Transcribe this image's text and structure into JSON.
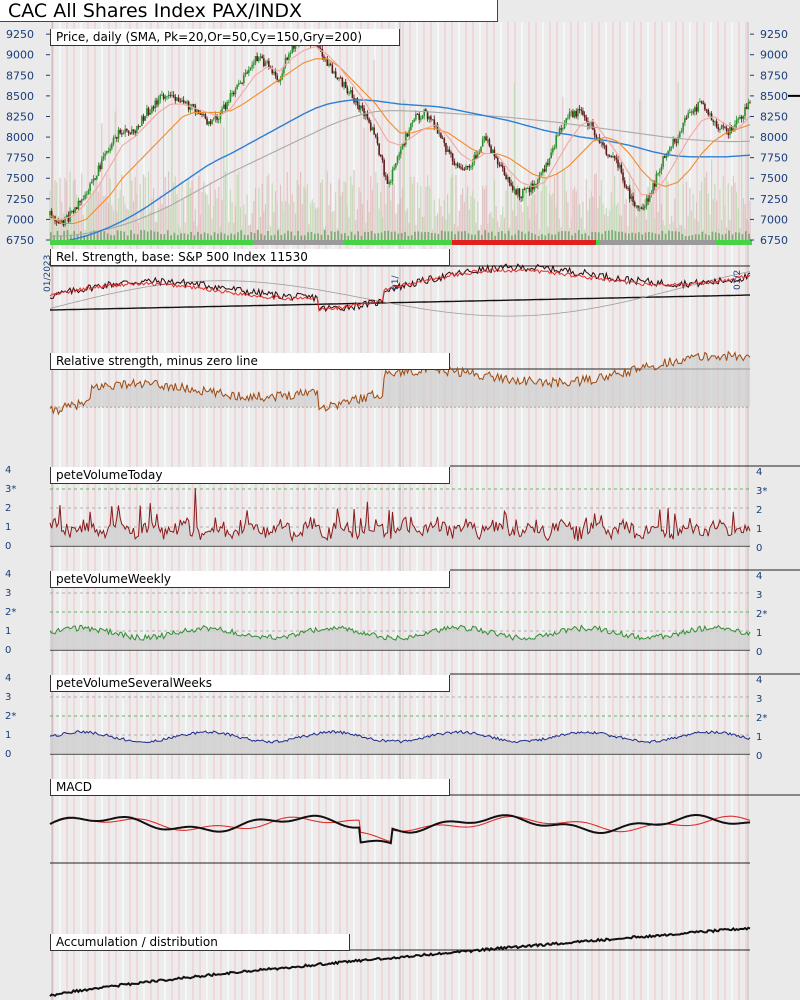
{
  "page": {
    "title": "CAC All Shares Index PAX/INDX"
  },
  "chart_data": [
    {
      "type": "candlestick",
      "panel": "price",
      "label": "Price, daily (SMA, Pk=20,Or=50,Cy=150,Gry=200)",
      "y_ticks": [
        9250,
        9000,
        8750,
        8500,
        8250,
        8000,
        7750,
        7500,
        7250,
        7000,
        6750
      ],
      "ylim": [
        6750,
        9300
      ],
      "last_price_marker": 8500,
      "series": [
        {
          "name": "Pk=20",
          "color": "#f4a6a0"
        },
        {
          "name": "Or=50",
          "color": "#f28c28"
        },
        {
          "name": "Cy=150",
          "color": "#2c7fd4"
        },
        {
          "name": "Gry=200",
          "color": "#a9a9a9"
        }
      ],
      "price_path": [
        7050,
        6950,
        7100,
        7350,
        7600,
        7900,
        8100,
        8050,
        8300,
        8450,
        8550,
        8400,
        8350,
        8200,
        8250,
        8500,
        8700,
        8950,
        8900,
        8700,
        9100,
        9200,
        9150,
        8900,
        8700,
        8500,
        8300,
        8000,
        7400,
        7800,
        8200,
        8300,
        8100,
        7800,
        7600,
        7700,
        8000,
        7700,
        7450,
        7300,
        7400,
        7600,
        8000,
        8250,
        8300,
        8100,
        7850,
        7700,
        7300,
        7100,
        7400,
        7800,
        8000,
        8300,
        8400,
        8200,
        8050,
        8200,
        8450
      ],
      "ma20": [
        7000,
        7000,
        7050,
        7200,
        7400,
        7650,
        7900,
        8000,
        8150,
        8300,
        8400,
        8400,
        8350,
        8300,
        8250,
        8350,
        8550,
        8750,
        8850,
        8800,
        8950,
        9050,
        9100,
        9000,
        8850,
        8650,
        8450,
        8200,
        7950,
        7900,
        8000,
        8100,
        8150,
        8000,
        7800,
        7700,
        7800,
        7800,
        7600,
        7450,
        7400,
        7450,
        7700,
        7950,
        8150,
        8200,
        8000,
        7800,
        7550,
        7300,
        7300,
        7500,
        7750,
        8000,
        8200,
        8250,
        8150,
        8100,
        8250
      ],
      "ma50": [
        7050,
        6950,
        6950,
        7000,
        7150,
        7300,
        7500,
        7650,
        7800,
        7950,
        8100,
        8250,
        8300,
        8300,
        8300,
        8320,
        8400,
        8500,
        8600,
        8700,
        8800,
        8900,
        8950,
        8950,
        8850,
        8700,
        8550,
        8400,
        8200,
        8050,
        8050,
        8100,
        8100,
        8050,
        7950,
        7850,
        7800,
        7800,
        7750,
        7650,
        7550,
        7500,
        7550,
        7650,
        7800,
        7950,
        8000,
        7950,
        7800,
        7600,
        7450,
        7400,
        7450,
        7600,
        7800,
        7950,
        8050,
        8100,
        8150
      ],
      "ma150": [
        6700,
        6730,
        6760,
        6800,
        6850,
        6910,
        6980,
        7060,
        7150,
        7250,
        7350,
        7450,
        7550,
        7650,
        7730,
        7800,
        7880,
        7960,
        8040,
        8120,
        8200,
        8280,
        8350,
        8400,
        8430,
        8450,
        8450,
        8440,
        8420,
        8400,
        8390,
        8380,
        8370,
        8350,
        8320,
        8290,
        8260,
        8230,
        8200,
        8160,
        8120,
        8080,
        8050,
        8030,
        8000,
        7980,
        7960,
        7930,
        7900,
        7860,
        7820,
        7790,
        7770,
        7760,
        7760,
        7760,
        7760,
        7770,
        7780
      ],
      "ma200": [
        6800,
        6800,
        6810,
        6830,
        6860,
        6890,
        6930,
        6980,
        7040,
        7100,
        7170,
        7250,
        7330,
        7410,
        7490,
        7570,
        7640,
        7710,
        7780,
        7850,
        7920,
        7990,
        8060,
        8130,
        8190,
        8240,
        8280,
        8310,
        8320,
        8320,
        8315,
        8310,
        8300,
        8290,
        8280,
        8270,
        8260,
        8250,
        8240,
        8225,
        8210,
        8195,
        8180,
        8160,
        8140,
        8120,
        8100,
        8080,
        8060,
        8040,
        8020,
        8000,
        7985,
        7970,
        7960,
        7950,
        7945,
        7945,
        7950
      ]
    },
    {
      "type": "line",
      "panel": "relative_strength",
      "label": "Rel. Strength, base: S&P 500 Index 11530"
    },
    {
      "type": "line",
      "panel": "relative_strength_minus_zero",
      "label": "Relative strength, minus zero line"
    },
    {
      "type": "line",
      "panel": "pete_volume_today",
      "label": "peteVolumeToday",
      "y_ticks": [
        "4",
        "3*",
        "2",
        "1",
        "0"
      ],
      "ylim": [
        0,
        4
      ],
      "color": "#8b1a1a"
    },
    {
      "type": "line",
      "panel": "pete_volume_weekly",
      "label": "peteVolumeWeekly",
      "y_ticks": [
        "4",
        "3",
        "2*",
        "1",
        "0"
      ],
      "ylim": [
        0,
        4
      ],
      "color": "#2f8f2f"
    },
    {
      "type": "line",
      "panel": "pete_volume_several_weeks",
      "label": "peteVolumeSeveralWeeks",
      "y_ticks": [
        "4",
        "3",
        "2*",
        "1",
        "0"
      ],
      "ylim": [
        0,
        4
      ],
      "color": "#1c2a8a"
    },
    {
      "type": "line",
      "panel": "macd",
      "label": "MACD"
    },
    {
      "type": "line",
      "panel": "accumulation_distribution",
      "label": "Accumulation / distribution"
    }
  ],
  "date_labels": [
    "01/2023",
    "01/",
    "01/2"
  ]
}
